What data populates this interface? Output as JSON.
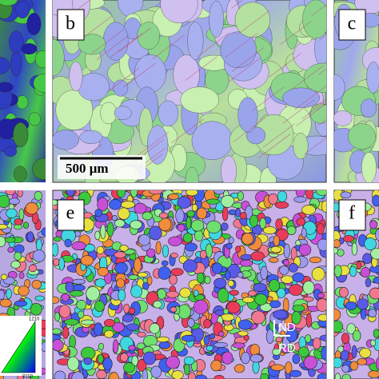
{
  "panels": [
    {
      "label": "b"
    },
    {
      "label": "c"
    },
    {
      "label": "e"
    },
    {
      "label": "f"
    }
  ],
  "scale_bar": {
    "label": "500 μm"
  },
  "axes": {
    "normal": "ND",
    "rolling": "RD"
  },
  "ipf_key": {
    "top": "1210",
    "bottom": "0110"
  }
}
